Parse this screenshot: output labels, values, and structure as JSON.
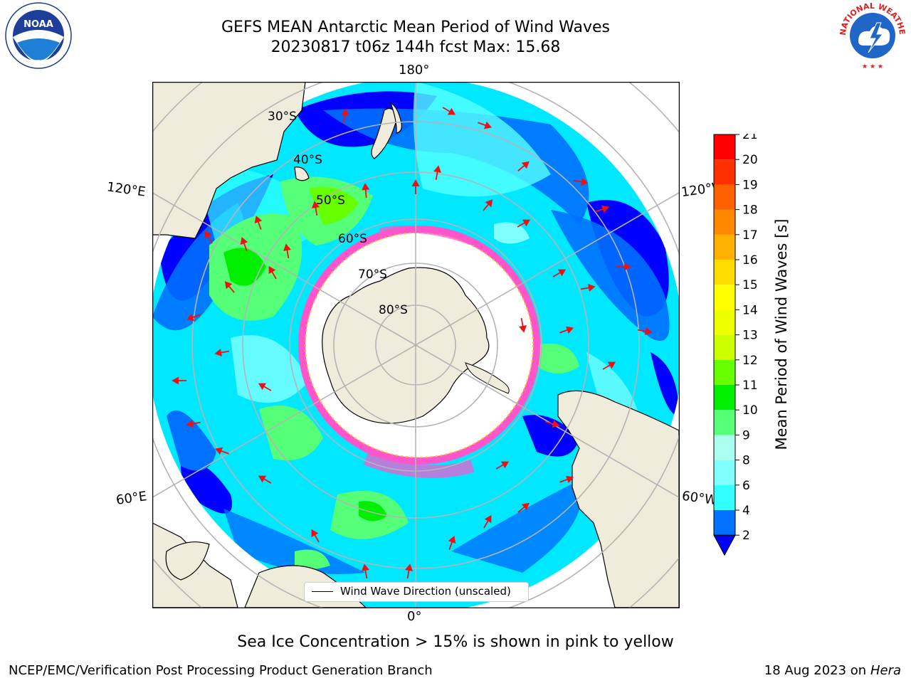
{
  "header": {
    "title_line1": "GEFS MEAN Antarctic Mean Period of Wind Waves",
    "title_line2": "20230817 t06z 144h fcst   Max: 15.68"
  },
  "map": {
    "projection": "south polar stereographic",
    "latitude_labels": [
      "30°S",
      "40°S",
      "50°S",
      "60°S",
      "70°S",
      "80°S"
    ],
    "longitude_labels": {
      "top": "180°",
      "bottom": "0°",
      "upper_left": "120°E",
      "lower_left": "60°E",
      "upper_right": "120°W",
      "lower_right": "60°W"
    },
    "legend_label": "Wind Wave Direction (unscaled)",
    "colors": {
      "land": "#efecdc",
      "sea_ice": "#ff55cc",
      "arrow": "#ee1111",
      "grid": "#b4b4b4"
    }
  },
  "colorbar": {
    "title": "Mean Period of Wind Waves [s]",
    "ticks": [
      "2",
      "4",
      "6",
      "8",
      "9",
      "10",
      "11",
      "12",
      "13",
      "14",
      "15",
      "16",
      "17",
      "18",
      "19",
      "20",
      "21"
    ],
    "colors": [
      "#0070ff",
      "#00e0ff",
      "#33ffff",
      "#80ffff",
      "#aaffee",
      "#55ff77",
      "#00ee00",
      "#66ff00",
      "#ccff00",
      "#eeff00",
      "#ffff00",
      "#ffdd00",
      "#ffb000",
      "#ff8800",
      "#ff6000",
      "#ff3000",
      "#ff0000"
    ],
    "under_color": "#0000ff"
  },
  "footnote": "Sea Ice Concentration > 15% is shown in pink to yellow",
  "credit": "NCEP/EMC/Verification Post Processing Product Generation Branch",
  "datestamp": {
    "date": "18 Aug 2023 on",
    "machine": "Hera"
  },
  "logos": {
    "noaa": "NOAA",
    "nws": "NATIONAL WEATHER SERVICE"
  }
}
